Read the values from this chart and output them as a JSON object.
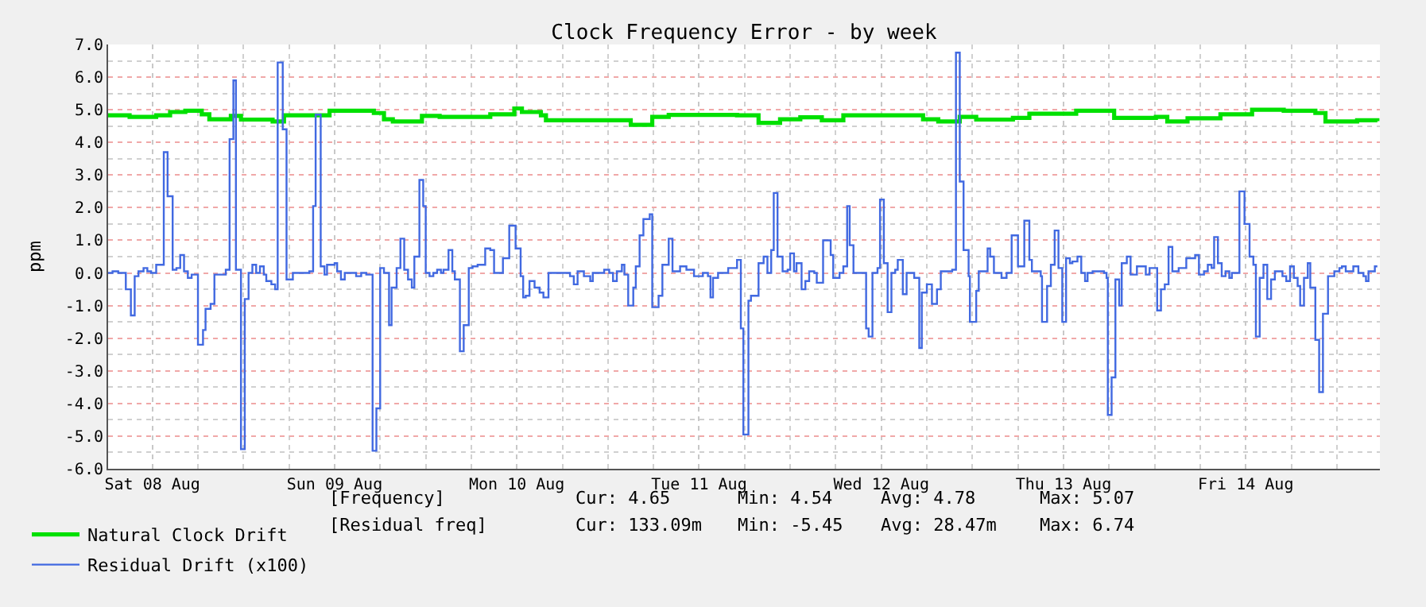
{
  "chart_data": {
    "type": "step",
    "title": "Clock Frequency Error - by week",
    "ylabel": "ppm",
    "xlim": [
      "--08-08T06:10",
      "--08-15T05:40"
    ],
    "xticks": [
      {
        "value": "--08-08T12:00",
        "label": "Sat 08 Aug"
      },
      {
        "value": "--08-09T12:00",
        "label": "Sun 09 Aug"
      },
      {
        "value": "--08-10T12:00",
        "label": "Mon 10 Aug"
      },
      {
        "value": "--08-11T12:00",
        "label": "Tue 11 Aug"
      },
      {
        "value": "--08-12T12:00",
        "label": "Wed 12 Aug"
      },
      {
        "value": "--08-13T12:00",
        "label": "Thu 13 Aug"
      },
      {
        "value": "--08-14T12:00",
        "label": "Fri 14 Aug"
      },
      {
        "value": "--08-08T18:00",
        "label": null
      },
      {
        "value": "--08-09T00:00",
        "label": null
      },
      {
        "value": "--08-09T06:00",
        "label": null
      },
      {
        "value": "--08-09T18:00",
        "label": null
      },
      {
        "value": "--08-10T00:00",
        "label": null
      },
      {
        "value": "--08-10T06:00",
        "label": null
      },
      {
        "value": "--08-10T18:00",
        "label": null
      },
      {
        "value": "--08-11T00:00",
        "label": null
      },
      {
        "value": "--08-11T06:00",
        "label": null
      },
      {
        "value": "--08-11T18:00",
        "label": null
      },
      {
        "value": "--08-12T00:00",
        "label": null
      },
      {
        "value": "--08-12T06:00",
        "label": null
      },
      {
        "value": "--08-12T18:00",
        "label": null
      },
      {
        "value": "--08-13T00:00",
        "label": null
      },
      {
        "value": "--08-13T06:00",
        "label": null
      },
      {
        "value": "--08-13T18:00",
        "label": null
      },
      {
        "value": "--08-14T00:00",
        "label": null
      },
      {
        "value": "--08-14T06:00",
        "label": null
      },
      {
        "value": "--08-14T18:00",
        "label": null
      },
      {
        "value": "--08-15T00:00",
        "label": null
      }
    ],
    "ylim": [
      -6,
      7
    ],
    "yticks": [
      {
        "value": -6,
        "label": "-6.0"
      },
      {
        "value": -5,
        "label": "-5.0"
      },
      {
        "value": -4,
        "label": "-4.0"
      },
      {
        "value": -3,
        "label": "-3.0"
      },
      {
        "value": -2,
        "label": "-2.0"
      },
      {
        "value": -1,
        "label": "-1.0"
      },
      {
        "value": 0,
        "label": "0.0"
      },
      {
        "value": 1,
        "label": "1.0"
      },
      {
        "value": 2,
        "label": "2.0"
      },
      {
        "value": 3,
        "label": "3.0"
      },
      {
        "value": 4,
        "label": "4.0"
      },
      {
        "value": 5,
        "label": "5.0"
      },
      {
        "value": 6,
        "label": "6.0"
      },
      {
        "value": 7,
        "label": "7.0"
      },
      {
        "value": -5.5,
        "label": null
      },
      {
        "value": -4.5,
        "label": null
      },
      {
        "value": -3.5,
        "label": null
      },
      {
        "value": -2.5,
        "label": null
      },
      {
        "value": -1.5,
        "label": null
      },
      {
        "value": -0.5,
        "label": null
      },
      {
        "value": 0.5,
        "label": null
      },
      {
        "value": 1.5,
        "label": null
      },
      {
        "value": 2.5,
        "label": null
      },
      {
        "value": 3.5,
        "label": null
      },
      {
        "value": 4.5,
        "label": null
      },
      {
        "value": 5.5,
        "label": null
      },
      {
        "value": 6.5,
        "label": null
      }
    ],
    "grid": true,
    "legend": "bottom left",
    "marker": "none",
    "line_style": "solid",
    "series": [
      {
        "name": "Natural Clock Drift",
        "color": "#00e000",
        "x": [
          "--08-08T06:10",
          "--08-08T09:00",
          "--08-08T12:30",
          "--08-08T14:20",
          "--08-08T16:20",
          "--08-08T18:30",
          "--08-08T19:30",
          "--08-08T22:20",
          "--08-08T23:40",
          "--08-09T01:30",
          "--08-09T03:50",
          "--08-09T05:20",
          "--08-09T08:30",
          "--08-09T11:20",
          "--08-09T17:10",
          "--08-09T18:30",
          "--08-09T19:40",
          "--08-09T23:30",
          "--08-10T01:50",
          "--08-10T05:20",
          "--08-10T08:30",
          "--08-10T11:40",
          "--08-10T12:40",
          "--08-10T15:10",
          "--08-10T15:50",
          "--08-11T03:00",
          "--08-11T05:50",
          "--08-11T08:00",
          "--08-11T17:00",
          "--08-11T19:50",
          "--08-11T22:40",
          "--08-12T01:20",
          "--08-12T04:10",
          "--08-12T07:00",
          "--08-12T14:00",
          "--08-12T17:30",
          "--08-12T19:30",
          "--08-12T22:20",
          "--08-13T00:30",
          "--08-13T05:20",
          "--08-13T07:30",
          "--08-13T13:40",
          "--08-13T18:40",
          "--08-14T00:10",
          "--08-14T01:40",
          "--08-14T04:20",
          "--08-14T08:40",
          "--08-14T12:50",
          "--08-14T17:00",
          "--08-14T21:10",
          "--08-14T22:30",
          "--08-15T02:40",
          "--08-15T05:20"
        ],
        "values": [
          4.83,
          4.78,
          4.83,
          4.93,
          4.97,
          4.86,
          4.71,
          4.81,
          4.7,
          4.7,
          4.64,
          4.83,
          4.83,
          4.97,
          4.9,
          4.71,
          4.64,
          4.81,
          4.78,
          4.78,
          4.86,
          5.04,
          4.93,
          4.83,
          4.68,
          4.54,
          4.78,
          4.84,
          4.83,
          4.6,
          4.71,
          4.77,
          4.68,
          4.83,
          4.83,
          4.71,
          4.64,
          4.78,
          4.7,
          4.75,
          4.88,
          4.97,
          4.75,
          4.78,
          4.64,
          4.74,
          4.86,
          5.0,
          4.97,
          4.9,
          4.64,
          4.68,
          4.65
        ]
      },
      {
        "name": "Residual Drift (x100)",
        "color": "#4169e1",
        "x": [
          "--08-08T06:10",
          "--08-08T06:45",
          "--08-08T07:30",
          "--08-08T08:30",
          "--08-08T09:10",
          "--08-08T09:40",
          "--08-08T10:10",
          "--08-08T10:50",
          "--08-08T11:20",
          "--08-08T11:50",
          "--08-08T12:30",
          "--08-08T13:30",
          "--08-08T14:00",
          "--08-08T14:40",
          "--08-08T15:10",
          "--08-08T15:40",
          "--08-08T16:10",
          "--08-08T16:40",
          "--08-08T17:10",
          "--08-08T18:00",
          "--08-08T18:40",
          "--08-08T19:00",
          "--08-08T19:40",
          "--08-08T20:10",
          "--08-08T21:40",
          "--08-08T22:10",
          "--08-08T22:40",
          "--08-08T23:00",
          "--08-08T23:40",
          "--08-09T00:10",
          "--08-09T00:40",
          "--08-09T01:10",
          "--08-09T01:40",
          "--08-09T02:10",
          "--08-09T02:40",
          "--08-09T03:00",
          "--08-09T03:40",
          "--08-09T04:10",
          "--08-09T04:30",
          "--08-09T05:10",
          "--08-09T05:40",
          "--08-09T06:30",
          "--08-09T08:40",
          "--08-09T09:10",
          "--08-09T09:30",
          "--08-09T10:10",
          "--08-09T10:40",
          "--08-09T11:00",
          "--08-09T12:00",
          "--08-09T12:20",
          "--08-09T12:50",
          "--08-09T13:20",
          "--08-09T14:50",
          "--08-09T15:30",
          "--08-09T16:10",
          "--08-09T17:00",
          "--08-09T17:30",
          "--08-09T18:00",
          "--08-09T18:30",
          "--08-09T19:10",
          "--08-09T19:30",
          "--08-09T20:10",
          "--08-09T20:40",
          "--08-09T21:10",
          "--08-09T21:40",
          "--08-09T22:10",
          "--08-09T22:30",
          "--08-09T23:10",
          "--08-09T23:40",
          "--08-10T00:00",
          "--08-10T00:30",
          "--08-10T01:00",
          "--08-10T01:30",
          "--08-10T02:00",
          "--08-10T02:20",
          "--08-10T03:00",
          "--08-10T03:30",
          "--08-10T03:50",
          "--08-10T04:30",
          "--08-10T05:00",
          "--08-10T05:40",
          "--08-10T06:10",
          "--08-10T06:50",
          "--08-10T07:50",
          "--08-10T08:30",
          "--08-10T09:00",
          "--08-10T10:10",
          "--08-10T11:00",
          "--08-10T11:50",
          "--08-10T12:30",
          "--08-10T12:50",
          "--08-10T13:10",
          "--08-10T13:40",
          "--08-10T14:20",
          "--08-10T15:00",
          "--08-10T15:30",
          "--08-10T16:10",
          "--08-10T19:00",
          "--08-10T19:30",
          "--08-10T20:00",
          "--08-10T20:50",
          "--08-10T21:40",
          "--08-10T22:00",
          "--08-10T23:30",
          "--08-11T00:10",
          "--08-11T00:40",
          "--08-11T01:10",
          "--08-11T01:50",
          "--08-11T02:10",
          "--08-11T02:40",
          "--08-11T03:20",
          "--08-11T03:40",
          "--08-11T04:10",
          "--08-11T04:40",
          "--08-11T05:30",
          "--08-11T05:50",
          "--08-11T06:40",
          "--08-11T07:10",
          "--08-11T08:00",
          "--08-11T08:30",
          "--08-11T09:30",
          "--08-11T10:20",
          "--08-11T11:20",
          "--08-11T12:30",
          "--08-11T13:10",
          "--08-11T13:30",
          "--08-11T13:50",
          "--08-11T14:30",
          "--08-11T15:50",
          "--08-11T17:00",
          "--08-11T17:30",
          "--08-11T17:50",
          "--08-11T18:30",
          "--08-11T18:50",
          "--08-11T19:50",
          "--08-11T20:30",
          "--08-11T21:00",
          "--08-11T21:30",
          "--08-11T21:50",
          "--08-11T22:20",
          "--08-11T23:00",
          "--08-11T23:40",
          "--08-12T00:00",
          "--08-12T00:30",
          "--08-12T00:50",
          "--08-12T01:30",
          "--08-12T02:00",
          "--08-12T02:30",
          "--08-12T03:10",
          "--08-12T03:30",
          "--08-12T04:20",
          "--08-12T05:20",
          "--08-12T05:40",
          "--08-12T06:30",
          "--08-12T07:00",
          "--08-12T07:30",
          "--08-12T07:50",
          "--08-12T08:20",
          "--08-12T10:00",
          "--08-12T10:20",
          "--08-12T10:50",
          "--08-12T11:30",
          "--08-12T11:50",
          "--08-12T12:20",
          "--08-12T12:50",
          "--08-12T13:20",
          "--08-12T13:50",
          "--08-12T14:10",
          "--08-12T14:50",
          "--08-12T15:20",
          "--08-12T16:20",
          "--08-12T17:00",
          "--08-12T17:20",
          "--08-12T18:00",
          "--08-12T18:40",
          "--08-12T19:20",
          "--08-12T19:50",
          "--08-12T21:20",
          "--08-12T21:50",
          "--08-12T22:20",
          "--08-12T22:50",
          "--08-12T23:30",
          "--08-12T23:40",
          "--08-13T00:30",
          "--08-13T00:50",
          "--08-13T02:00",
          "--08-13T02:20",
          "--08-13T02:50",
          "--08-13T03:50",
          "--08-13T04:30",
          "--08-13T05:10",
          "--08-13T06:00",
          "--08-13T06:50",
          "--08-13T07:30",
          "--08-13T07:50",
          "--08-13T09:00",
          "--08-13T09:10",
          "--08-13T09:50",
          "--08-13T10:20",
          "--08-13T10:50",
          "--08-13T11:20",
          "--08-13T11:50",
          "--08-13T12:20",
          "--08-13T12:50",
          "--08-13T13:10",
          "--08-13T13:50",
          "--08-13T14:20",
          "--08-13T14:50",
          "--08-13T15:10",
          "--08-13T15:50",
          "--08-13T17:20",
          "--08-13T17:40",
          "--08-13T17:50",
          "--08-13T18:20",
          "--08-13T18:50",
          "--08-13T19:20",
          "--08-13T19:40",
          "--08-13T20:20",
          "--08-13T20:50",
          "--08-13T21:40",
          "--08-13T22:50",
          "--08-13T23:20",
          "--08-14T00:20",
          "--08-14T00:50",
          "--08-14T01:20",
          "--08-14T01:50",
          "--08-14T02:20",
          "--08-14T03:10",
          "--08-14T04:10",
          "--08-14T05:20",
          "--08-14T05:50",
          "--08-14T06:30",
          "--08-14T07:00",
          "--08-14T07:30",
          "--08-14T07:50",
          "--08-14T08:20",
          "--08-14T08:50",
          "--08-14T09:20",
          "--08-14T09:50",
          "--08-14T10:10",
          "--08-14T11:10",
          "--08-14T11:50",
          "--08-14T12:30",
          "--08-14T13:00",
          "--08-14T13:20",
          "--08-14T13:50",
          "--08-14T14:20",
          "--08-14T14:50",
          "--08-14T15:20",
          "--08-14T15:50",
          "--08-14T16:50",
          "--08-14T17:20",
          "--08-14T17:50",
          "--08-14T18:20",
          "--08-14T18:50",
          "--08-14T19:10",
          "--08-14T19:40",
          "--08-14T20:10",
          "--08-14T20:30",
          "--08-14T21:10",
          "--08-14T21:40",
          "--08-14T22:10",
          "--08-14T22:50",
          "--08-14T23:40",
          "--08-15T00:20",
          "--08-15T00:40",
          "--08-15T01:10",
          "--08-15T02:10",
          "--08-15T02:50",
          "--08-15T03:30",
          "--08-15T03:50",
          "--08-15T04:10",
          "--08-15T05:00",
          "--08-15T05:20"
        ],
        "values": [
          0,
          0.05,
          0,
          -0.5,
          -1.3,
          -0.1,
          0.05,
          0.15,
          0.05,
          0,
          0.25,
          3.7,
          2.35,
          0.1,
          0.15,
          0.55,
          0.05,
          -0.15,
          -0.05,
          -2.2,
          -1.75,
          -1.1,
          -0.95,
          -0.05,
          0.1,
          4.1,
          5.9,
          0.1,
          -5.4,
          -0.8,
          0,
          0.25,
          0,
          0.2,
          -0.05,
          -0.25,
          -0.35,
          -0.5,
          6.45,
          4.4,
          -0.2,
          0,
          0.05,
          2.05,
          4.85,
          0.2,
          -0.05,
          0.25,
          0.3,
          0.05,
          -0.2,
          0,
          -0.1,
          0,
          -0.05,
          -5.45,
          -4.15,
          0.15,
          0,
          -1.6,
          -0.45,
          0.15,
          1.05,
          0.1,
          -0.2,
          -0.45,
          0.5,
          2.85,
          2.05,
          0,
          -0.1,
          0,
          0.1,
          0,
          0.1,
          0.7,
          0.05,
          -0.2,
          -2.4,
          -1.6,
          0.15,
          0.2,
          0.25,
          0.75,
          0.7,
          0,
          0.45,
          1.45,
          0.75,
          -0.1,
          -0.75,
          -0.7,
          -0.25,
          -0.45,
          -0.6,
          -0.75,
          0,
          -0.1,
          -0.35,
          0.05,
          -0.1,
          -0.25,
          0,
          0.1,
          0,
          -0.25,
          0.05,
          0.25,
          -0.05,
          -1.0,
          -0.45,
          0.2,
          1.15,
          1.65,
          1.8,
          -1.05,
          -0.7,
          0.25,
          1.05,
          0.05,
          0.2,
          0.1,
          -0.1,
          0,
          -0.1,
          -0.75,
          -0.15,
          0,
          0.15,
          0.4,
          -1.7,
          -4.95,
          -0.85,
          -0.7,
          0.3,
          0.5,
          0,
          0.7,
          2.45,
          0.5,
          0.05,
          0.1,
          0.6,
          0.05,
          0.3,
          -0.5,
          -0.25,
          0.05,
          0,
          -0.3,
          1.0,
          0.55,
          -0.15,
          0,
          0.2,
          2.05,
          0.85,
          0,
          -1.7,
          -1.95,
          0,
          0.15,
          2.25,
          0.3,
          -1.2,
          0,
          0.1,
          0.4,
          -0.65,
          0,
          -0.15,
          -2.3,
          -0.6,
          -0.35,
          -0.95,
          -0.5,
          0.05,
          0.1,
          6.75,
          2.8,
          0.7,
          -0.1,
          -1.5,
          -0.55,
          0.05,
          0.75,
          0.5,
          0,
          -0.15,
          0,
          1.15,
          0.2,
          1.6,
          0.4,
          0.05,
          -0.1,
          -1.5,
          -0.4,
          0.25,
          1.3,
          0.15,
          -1.5,
          0.45,
          0.3,
          0.35,
          0.5,
          0,
          -0.25,
          0,
          0.05,
          0,
          -0.15,
          -4.35,
          -3.2,
          -0.2,
          -1.0,
          0.3,
          0.5,
          -0.05,
          0.2,
          -0.05,
          0.15,
          -1.15,
          -0.5,
          -0.35,
          0.8,
          0.05,
          0.15,
          0.45,
          0.55,
          -0.05,
          0.05,
          0.25,
          0.15,
          1.1,
          0.3,
          -0.1,
          0.05,
          -0.15,
          0,
          2.5,
          1.5,
          0.5,
          0.25,
          -1.95,
          -0.15,
          0.25,
          -0.8,
          -0.2,
          0.05,
          -0.1,
          -0.25,
          0.2,
          -0.15,
          -0.4,
          -1.0,
          -0.15,
          0.3,
          -0.45,
          -2.05,
          -3.65,
          -1.25,
          -0.1,
          0.05,
          0.15,
          0.2,
          0.05,
          0.2,
          0,
          -0.1,
          -0.25,
          0.05,
          0.2,
          0.2
        ]
      }
    ],
    "annotations": [
      "[Frequency]",
      "Cur: 4.65",
      "Min: 4.54",
      "Avg: 4.78",
      "Max: 5.07",
      "[Residual freq]",
      "Cur: 133.09m",
      "Min: -5.45",
      "Avg: 28.47m",
      "Max: 6.74"
    ]
  }
}
